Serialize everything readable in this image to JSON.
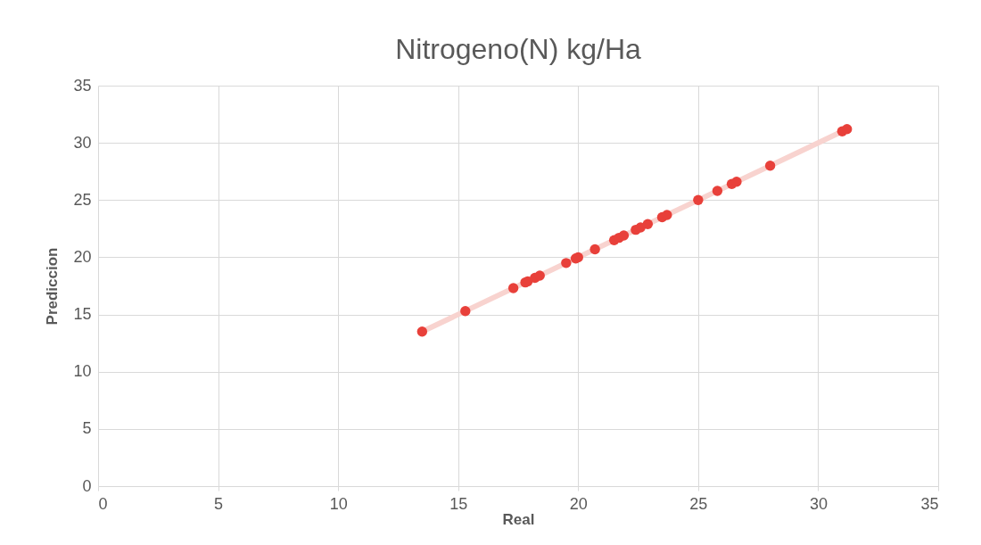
{
  "chart_data": {
    "type": "scatter",
    "title": "Nitrogeno(N) kg/Ha",
    "xlabel": "Real",
    "ylabel": "Prediccion",
    "xlim": [
      0,
      35
    ],
    "ylim": [
      0,
      35
    ],
    "xticks": [
      0,
      5,
      10,
      15,
      20,
      25,
      30,
      35
    ],
    "yticks": [
      0,
      5,
      10,
      15,
      20,
      25,
      30,
      35
    ],
    "grid": true,
    "series": [
      {
        "type": "line",
        "marker": "none",
        "color": "#f8d3cf",
        "x": [
          13.5,
          31.2
        ],
        "values": [
          13.5,
          31.2
        ]
      },
      {
        "marker": "circle",
        "color": "#e8403a",
        "x": [
          13.5,
          15.3,
          17.3,
          17.8,
          17.9,
          18.2,
          18.4,
          19.5,
          19.9,
          20.0,
          20.7,
          21.5,
          21.7,
          21.9,
          22.4,
          22.6,
          22.9,
          23.5,
          23.7,
          25.0,
          25.8,
          26.4,
          26.6,
          28.0,
          31.0,
          31.2
        ],
        "values": [
          13.5,
          15.3,
          17.3,
          17.8,
          17.9,
          18.2,
          18.4,
          19.5,
          19.9,
          20.0,
          20.7,
          21.5,
          21.7,
          21.9,
          22.4,
          22.6,
          22.9,
          23.5,
          23.7,
          25.0,
          25.8,
          26.4,
          26.6,
          28.0,
          31.0,
          31.2
        ]
      }
    ]
  }
}
